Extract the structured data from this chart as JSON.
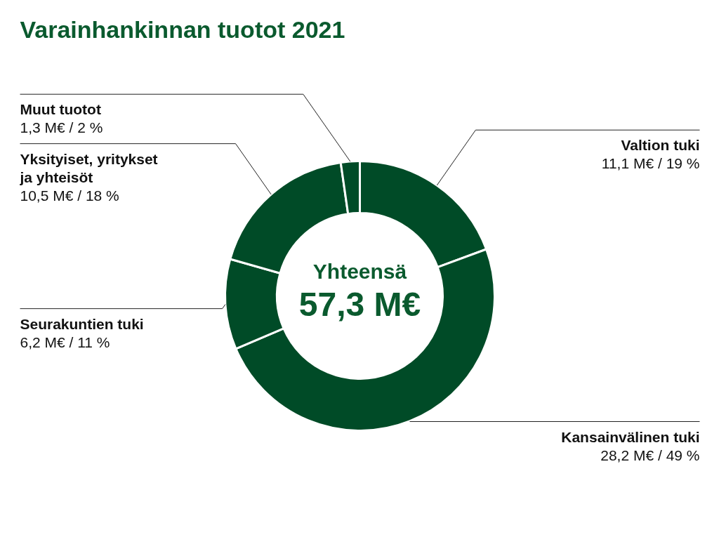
{
  "chart_data": {
    "type": "donut",
    "title": "Varainhankinnan tuotot 2021",
    "categories": [
      "Valtion tuki",
      "Kansainvälinen tuki",
      "Seurakuntien tuki",
      "Yksityiset, yritykset ja yhteisöt",
      "Muut tuotot"
    ],
    "values": [
      11.1,
      28.2,
      6.2,
      10.5,
      1.3
    ],
    "value_labels": [
      "11,1 M€ / 19 %",
      "28,2 M€ / 49 %",
      "6,2 M€ / 11 %",
      "10,5 M€ / 18 %",
      "1,3 M€ / 2 %"
    ],
    "colors": [
      "#004b27",
      "#004b27",
      "#004b27",
      "#004b27",
      "#004b27"
    ],
    "annotations": [
      "Yhteensä",
      "57,3 M€"
    ]
  }
}
